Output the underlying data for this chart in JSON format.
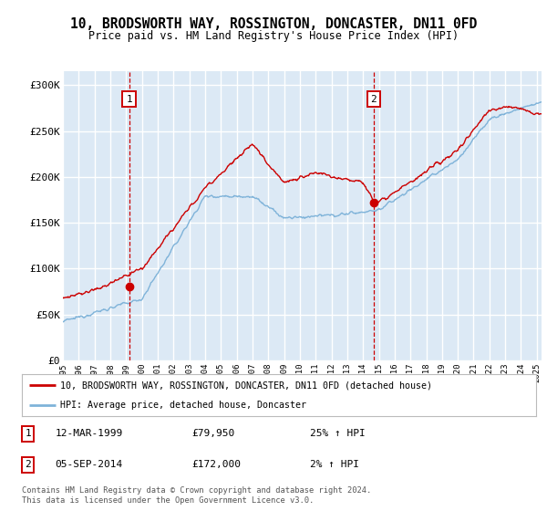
{
  "title": "10, BRODSWORTH WAY, ROSSINGTON, DONCASTER, DN11 0FD",
  "subtitle": "Price paid vs. HM Land Registry's House Price Index (HPI)",
  "ylabel_ticks": [
    "£0",
    "£50K",
    "£100K",
    "£150K",
    "£200K",
    "£250K",
    "£300K"
  ],
  "ytick_values": [
    0,
    50000,
    100000,
    150000,
    200000,
    250000,
    300000
  ],
  "ylim": [
    0,
    315000
  ],
  "xlim_start": 1995.0,
  "xlim_end": 2025.3,
  "background_color": "#dce9f5",
  "grid_color": "#ffffff",
  "hpi_color": "#7fb3d9",
  "price_color": "#cc0000",
  "marker1_date": 1999.19,
  "marker1_price": 79950,
  "marker2_date": 2014.67,
  "marker2_price": 172000,
  "legend_line1": "10, BRODSWORTH WAY, ROSSINGTON, DONCASTER, DN11 0FD (detached house)",
  "legend_line2": "HPI: Average price, detached house, Doncaster",
  "annotation1_date": "12-MAR-1999",
  "annotation1_price": "£79,950",
  "annotation1_pct": "25% ↑ HPI",
  "annotation2_date": "05-SEP-2014",
  "annotation2_price": "£172,000",
  "annotation2_pct": "2% ↑ HPI",
  "footer": "Contains HM Land Registry data © Crown copyright and database right 2024.\nThis data is licensed under the Open Government Licence v3.0."
}
